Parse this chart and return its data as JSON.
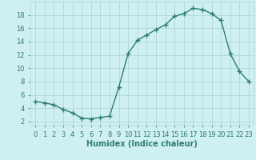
{
  "x": [
    0,
    1,
    2,
    3,
    4,
    5,
    6,
    7,
    8,
    9,
    10,
    11,
    12,
    13,
    14,
    15,
    16,
    17,
    18,
    19,
    20,
    21,
    22,
    23
  ],
  "y": [
    5.0,
    4.8,
    4.5,
    3.8,
    3.3,
    2.5,
    2.4,
    2.6,
    2.8,
    7.2,
    12.2,
    14.2,
    15.0,
    15.8,
    16.5,
    17.8,
    18.2,
    19.0,
    18.8,
    18.2,
    17.2,
    12.2,
    9.5,
    8.0
  ],
  "line_color": "#2e7d6e",
  "marker": "+",
  "marker_size": 4,
  "bg_color": "#cff0f0",
  "grid_color": "#afd8d8",
  "xlabel": "Humidex (Indice chaleur)",
  "xlim": [
    -0.5,
    23.5
  ],
  "ylim": [
    1.5,
    20.0
  ],
  "yticks": [
    2,
    4,
    6,
    8,
    10,
    12,
    14,
    16,
    18
  ],
  "xlabel_fontsize": 7,
  "tick_fontsize": 6,
  "line_width": 1.0
}
